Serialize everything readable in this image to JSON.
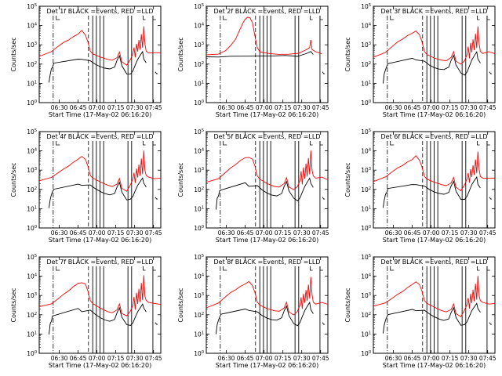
{
  "figure": {
    "title_text": "Det 3f BLACK =Events, RED =LLD",
    "xlabel": "Start Time (17-May-02 06:16:20)",
    "ylabel": "Counts/sec",
    "x_tick_labels": [
      "06:30",
      "06:45",
      "07:00",
      "07:15",
      "07:30",
      "07:45"
    ],
    "y_tick_base": "10",
    "y_tick_exponents": [
      "0",
      "1",
      "2",
      "3",
      "4",
      "5"
    ]
  },
  "colors": {
    "events": "#000000",
    "lld": "#ff0000",
    "background": "#ffffff"
  },
  "chart_data": [
    {
      "type": "line",
      "panel": 1,
      "title": "Det 1f BLACK =Events, RED =LLD",
      "xlabel": "Start Time (17-May-02 06:16:20)",
      "ylabel": "Counts/sec",
      "x_ticks": [
        "06:30",
        "06:45",
        "07:00",
        "07:15",
        "07:30",
        "07:45"
      ],
      "yscale": "log",
      "ylim": [
        1,
        100000
      ],
      "series": [
        {
          "name": "Events",
          "color": "black"
        },
        {
          "name": "LLD",
          "color": "red"
        }
      ]
    },
    {
      "type": "line",
      "panel": 2,
      "title": "Det 2f BLACK =Events, RED =LLD",
      "xlabel": "Start Time (17-May-02 06:16:20)",
      "ylabel": "Counts/sec",
      "x_ticks": [
        "06:30",
        "06:45",
        "07:00",
        "07:15",
        "07:30",
        "07:45"
      ],
      "yscale": "log",
      "ylim": [
        1,
        100000
      ],
      "series": [
        {
          "name": "Events",
          "color": "black"
        },
        {
          "name": "LLD",
          "color": "red"
        }
      ]
    },
    {
      "type": "line",
      "panel": 3,
      "title": "Det 3f BLACK =Events, RED =LLD",
      "xlabel": "Start Time (17-May-02 06:16:20)",
      "ylabel": "Counts/sec",
      "x_ticks": [
        "06:30",
        "06:45",
        "07:00",
        "07:15",
        "07:30",
        "07:45"
      ],
      "yscale": "log",
      "ylim": [
        1,
        100000
      ],
      "series": [
        {
          "name": "Events",
          "color": "black"
        },
        {
          "name": "LLD",
          "color": "red"
        }
      ]
    },
    {
      "type": "line",
      "panel": 4,
      "title": "Det 4f BLACK =Events, RED =LLD",
      "xlabel": "Start Time (17-May-02 06:16:20)",
      "ylabel": "Counts/sec",
      "x_ticks": [
        "06:30",
        "06:45",
        "07:00",
        "07:15",
        "07:30",
        "07:45"
      ],
      "yscale": "log",
      "ylim": [
        1,
        100000
      ],
      "series": [
        {
          "name": "Events",
          "color": "black"
        },
        {
          "name": "LLD",
          "color": "red"
        }
      ]
    },
    {
      "type": "line",
      "panel": 5,
      "title": "Det 5f BLACK =Events, RED =LLD",
      "xlabel": "Start Time (17-May-02 06:16:20)",
      "ylabel": "Counts/sec",
      "x_ticks": [
        "06:30",
        "06:45",
        "07:00",
        "07:15",
        "07:30",
        "07:45"
      ],
      "yscale": "log",
      "ylim": [
        1,
        100000
      ],
      "series": [
        {
          "name": "Events",
          "color": "black"
        },
        {
          "name": "LLD",
          "color": "red"
        }
      ]
    },
    {
      "type": "line",
      "panel": 6,
      "title": "Det 6f BLACK =Events, RED =LLD",
      "xlabel": "Start Time (17-May-02 06:16:20)",
      "ylabel": "Counts/sec",
      "x_ticks": [
        "06:30",
        "06:45",
        "07:00",
        "07:15",
        "07:30",
        "07:45"
      ],
      "yscale": "log",
      "ylim": [
        1,
        100000
      ],
      "series": [
        {
          "name": "Events",
          "color": "black"
        },
        {
          "name": "LLD",
          "color": "red"
        }
      ]
    },
    {
      "type": "line",
      "panel": 7,
      "title": "Det 7f BLACK =Events, RED =LLD",
      "xlabel": "Start Time (17-May-02 06:16:20)",
      "ylabel": "Counts/sec",
      "x_ticks": [
        "06:30",
        "06:45",
        "07:00",
        "07:15",
        "07:30",
        "07:45"
      ],
      "yscale": "log",
      "ylim": [
        1,
        100000
      ],
      "series": [
        {
          "name": "Events",
          "color": "black"
        },
        {
          "name": "LLD",
          "color": "red"
        }
      ]
    },
    {
      "type": "line",
      "panel": 8,
      "title": "Det 8f BLACK =Events, RED =LLD",
      "xlabel": "Start Time (17-May-02 06:16:20)",
      "ylabel": "Counts/sec",
      "x_ticks": [
        "06:30",
        "06:45",
        "07:00",
        "07:15",
        "07:30",
        "07:45"
      ],
      "yscale": "log",
      "ylim": [
        1,
        100000
      ],
      "series": [
        {
          "name": "Events",
          "color": "black"
        },
        {
          "name": "LLD",
          "color": "red"
        }
      ]
    },
    {
      "type": "line",
      "panel": 9,
      "title": "Det 9f BLACK =Events, RED =LLD",
      "xlabel": "Start Time (17-May-02 06:16:20)",
      "ylabel": "Counts/sec",
      "x_ticks": [
        "06:30",
        "06:45",
        "07:00",
        "07:15",
        "07:30",
        "07:45"
      ],
      "yscale": "log",
      "ylim": [
        1,
        100000
      ],
      "series": [
        {
          "name": "Events",
          "color": "black"
        },
        {
          "name": "LLD",
          "color": "red"
        }
      ]
    }
  ]
}
